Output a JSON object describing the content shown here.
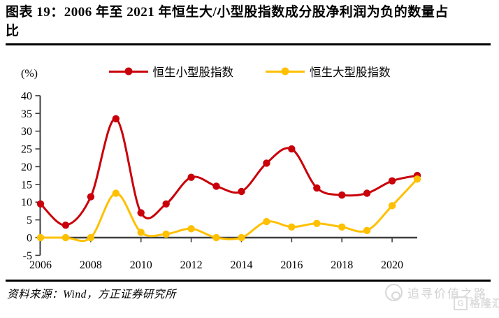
{
  "figure": {
    "title": "图表 19：2006 年至 2021 年恒生大/小型股指数成分股净利润为负的数量占比",
    "source_note": "资料来源：Wind，方正证券研究所",
    "watermark_text": "追寻价值之路",
    "watermark_logo_letter": "G",
    "watermark_logo_text": "格隆汇"
  },
  "chart_data": {
    "type": "line",
    "title": "2006 年至 2021 年恒生大/小型股指数成分股净利润为负的数量占比",
    "unit_label": "(%)",
    "xlabel": "",
    "ylabel": "(%)",
    "x": [
      2006,
      2007,
      2008,
      2009,
      2010,
      2011,
      2012,
      2013,
      2014,
      2015,
      2016,
      2017,
      2018,
      2019,
      2020,
      2021
    ],
    "series": [
      {
        "name": "恒生小型股指数",
        "color": "#C9000A",
        "values": [
          9.5,
          3.5,
          11.5,
          33.5,
          7,
          9.5,
          17,
          14.5,
          13,
          21,
          25,
          14,
          12,
          12.5,
          16,
          17.5
        ]
      },
      {
        "name": "恒生大型股指数",
        "color": "#FFC000",
        "values": [
          0,
          0,
          0,
          12.5,
          1.5,
          1,
          2.5,
          0,
          0,
          4.5,
          3,
          4,
          3,
          2,
          9,
          16.5
        ]
      }
    ],
    "ylim": [
      -5,
      40
    ],
    "y_ticks": [
      40,
      35,
      30,
      25,
      20,
      15,
      10,
      5,
      0,
      -5
    ],
    "x_tick_labels": [
      "2006",
      "2008",
      "2010",
      "2012",
      "2014",
      "2016",
      "2018",
      "2020"
    ],
    "grid": false,
    "legend_position": "top",
    "smooth": true,
    "axis_color": "#3f3f3f"
  }
}
